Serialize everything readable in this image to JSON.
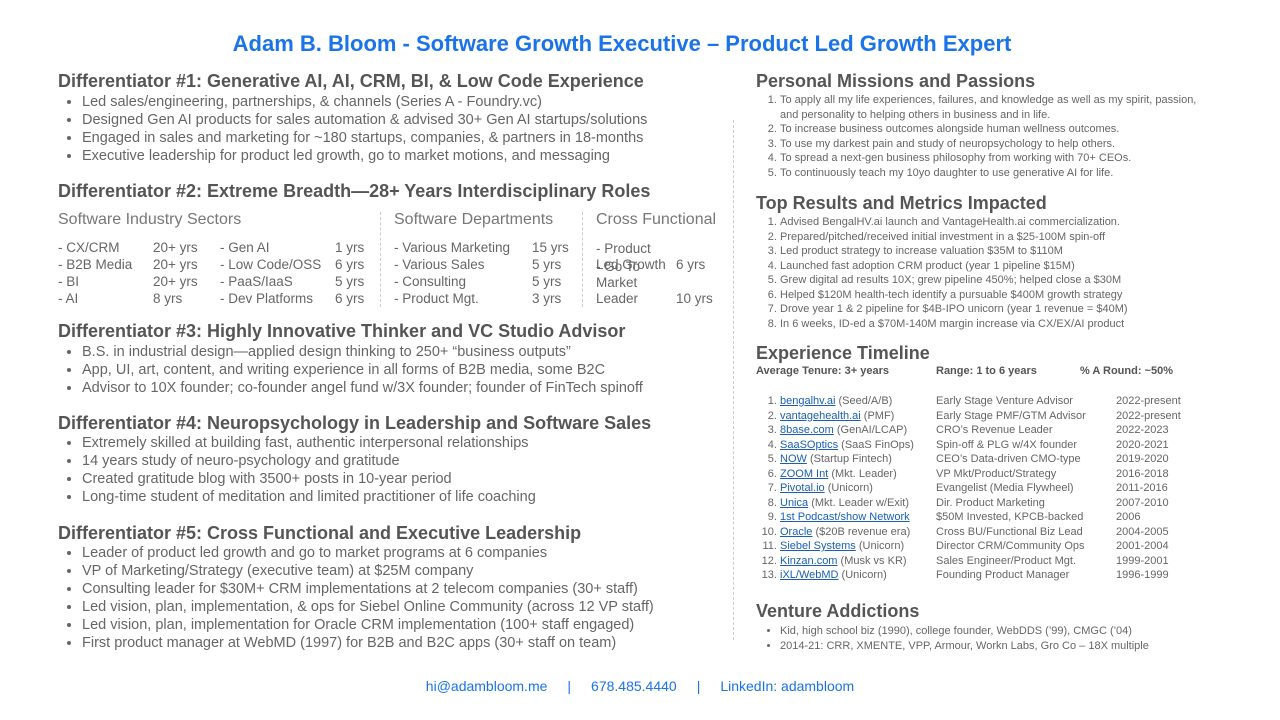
{
  "title": "Adam B. Bloom - Software Growth Executive – Product Led Growth Expert",
  "differentiators": [
    {
      "heading": "Differentiator #1: Generative AI, AI, CRM, BI, & Low Code Experience",
      "bullets": [
        "Led sales/engineering, partnerships, & channels (Series A - Foundry.vc)",
        "Designed Gen AI products for sales automation & advised 30+ Gen AI startups/solutions",
        "Engaged in sales and marketing for ~180 startups, companies, & partners in 18-months",
        "Executive leadership for product led growth, go to market motions, and messaging"
      ]
    },
    {
      "heading": "Differentiator #2: Extreme Breadth—28+ Years Interdisciplinary Roles",
      "columns": [
        {
          "heading": "Software Industry Sectors",
          "rows": [
            [
              "- CX/CRM",
              "20+ yrs"
            ],
            [
              "- B2B Media",
              "20+ yrs"
            ],
            [
              "- BI",
              "20+ yrs"
            ],
            [
              "- AI",
              "8 yrs"
            ]
          ]
        },
        {
          "rows": [
            [
              "- Gen AI",
              "1 yrs"
            ],
            [
              "- Low Code/OSS",
              "6 yrs"
            ],
            [
              "- PaaS/IaaS",
              "5 yrs"
            ],
            [
              "- Dev Platforms",
              "6 yrs"
            ]
          ]
        },
        {
          "heading": "Software Departments",
          "rows": [
            [
              "- Various Marketing",
              "15 yrs"
            ],
            [
              "- Various Sales",
              "5 yrs"
            ],
            [
              "- Consulting",
              "5 yrs"
            ],
            [
              "- Product Mgt.",
              "3 yrs"
            ]
          ]
        },
        {
          "heading": "Cross Functional",
          "rows": [
            [
              "- Product Led Growth",
              "6 yrs"
            ],
            [
              "- Go To Market Leader",
              "10 yrs"
            ]
          ]
        }
      ]
    },
    {
      "heading": "Differentiator #3: Highly Innovative Thinker and VC Studio Advisor",
      "bullets": [
        "B.S. in industrial design—applied design thinking to 250+ “business outputs”",
        "App, UI, art, content, and writing experience in all forms of B2B media, some B2C",
        "Advisor to 10X founder; co-founder angel fund w/3X founder; founder of FinTech spinoff"
      ]
    },
    {
      "heading": "Differentiator #4: Neuropsychology in Leadership and Software Sales",
      "bullets": [
        "Extremely skilled at building fast, authentic interpersonal relationships",
        "14 years study of neuro-psychology and gratitude",
        "Created gratitude blog with 3500+ posts in 10-year period",
        "Long-time student of meditation and limited practitioner of life coaching"
      ]
    },
    {
      "heading": "Differentiator #5: Cross Functional and Executive Leadership",
      "bullets": [
        "Leader of product led growth and go to market programs at 6 companies",
        "VP of Marketing/Strategy (executive team) at $25M company",
        "Consulting leader for $30M+ CRM implementations at 2 telecom companies (30+ staff)",
        "Led vision, plan, implementation, & ops for Siebel Online Community (across 12 VP staff)",
        "Led vision, plan, implementation for Oracle CRM implementation (100+ staff engaged)",
        "First product manager at WebMD (1997) for B2B and B2C apps (30+ staff on team)"
      ]
    }
  ],
  "missions": {
    "heading": "Personal Missions and Passions",
    "items": [
      "To apply all my life experiences, failures, and knowledge as well as my spirit, passion, and personality to helping others in business and in life.",
      "To increase business outcomes alongside human wellness outcomes.",
      "To use my darkest pain and study of neuropsychology to help others.",
      "To spread a next-gen business philosophy from working with 70+ CEOs.",
      "To continuously teach my 10yo daughter to use generative AI for life."
    ]
  },
  "results": {
    "heading": "Top Results and Metrics Impacted",
    "items": [
      "Advised BengalHV.ai launch and VantageHealth.ai commercialization.",
      "Prepared/pitched/received initial investment in a $25-100M spin-off",
      "Led product strategy to increase valuation $35M to $110M",
      "Launched fast adoption CRM product (year 1 pipeline $15M)",
      "Grew digital ad results 10X; grew pipeline 450%; helped close a $30M",
      "Helped $120M health-tech identify a pursuable $400M growth strategy",
      "Drove year 1 & 2 pipeline for $4B-IPO unicorn (year 1 revenue = $40M)",
      "In 6 weeks, ID-ed a $70M-140M margin increase via CX/EX/AI product"
    ]
  },
  "timeline": {
    "heading": "Experience Timeline",
    "summary": [
      "Average Tenure: 3+ years",
      "Range: 1 to 6 years",
      "% A Round: ~50%"
    ],
    "rows": [
      [
        "bengalhv.ai",
        "(Seed/A/B)",
        "Early Stage Venture Advisor",
        "2022-present"
      ],
      [
        "vantagehealth.ai",
        "(PMF)",
        "Early Stage PMF/GTM Advisor",
        "2022-present"
      ],
      [
        "8base.com",
        "(GenAI/LCAP)",
        "CRO’s Revenue Leader",
        "2022-2023"
      ],
      [
        "SaaSOptics",
        "(SaaS FinOps)",
        "Spin-off & PLG w/4X founder",
        "2020-2021"
      ],
      [
        "NOW",
        "(Startup Fintech)",
        "CEO’s Data-driven CMO-type",
        "2019-2020"
      ],
      [
        "ZOOM Int",
        "(Mkt. Leader)",
        "VP Mkt/Product/Strategy",
        "2016-2018"
      ],
      [
        "Pivotal.io",
        "(Unicorn)",
        "Evangelist (Media Flywheel)",
        "2011-2016"
      ],
      [
        "Unica",
        "(Mkt. Leader w/Exit)",
        "Dir. Product Marketing",
        "2007-2010"
      ],
      [
        "1st Podcast/show Network",
        "",
        "$50M Invested, KPCB-backed",
        "2006"
      ],
      [
        "Oracle",
        "($20B revenue era)",
        "Cross BU/Functional Biz Lead",
        "2004-2005"
      ],
      [
        "Siebel Systems",
        "(Unicorn)",
        "Director CRM/Community Ops",
        "2001-2004"
      ],
      [
        "Kinzan.com",
        "(Musk vs KR)",
        "Sales Engineer/Product Mgt.",
        "1999-2001"
      ],
      [
        "iXL/WebMD",
        "(Unicorn)",
        "Founding Product Manager",
        "1996-1999"
      ]
    ]
  },
  "venture": {
    "heading": "Venture Addictions",
    "items": [
      "Kid, high school biz (1990), college founder, WebDDS (’99), CMGC  (’04)",
      "2014-21: CRR, XMENTE, VPP, Armour, Workn Labs, Gro Co – 18X multiple"
    ]
  },
  "footer": [
    "hi@adambloom.me",
    "|",
    "678.485.4440",
    "|",
    "LinkedIn: adambloom"
  ]
}
